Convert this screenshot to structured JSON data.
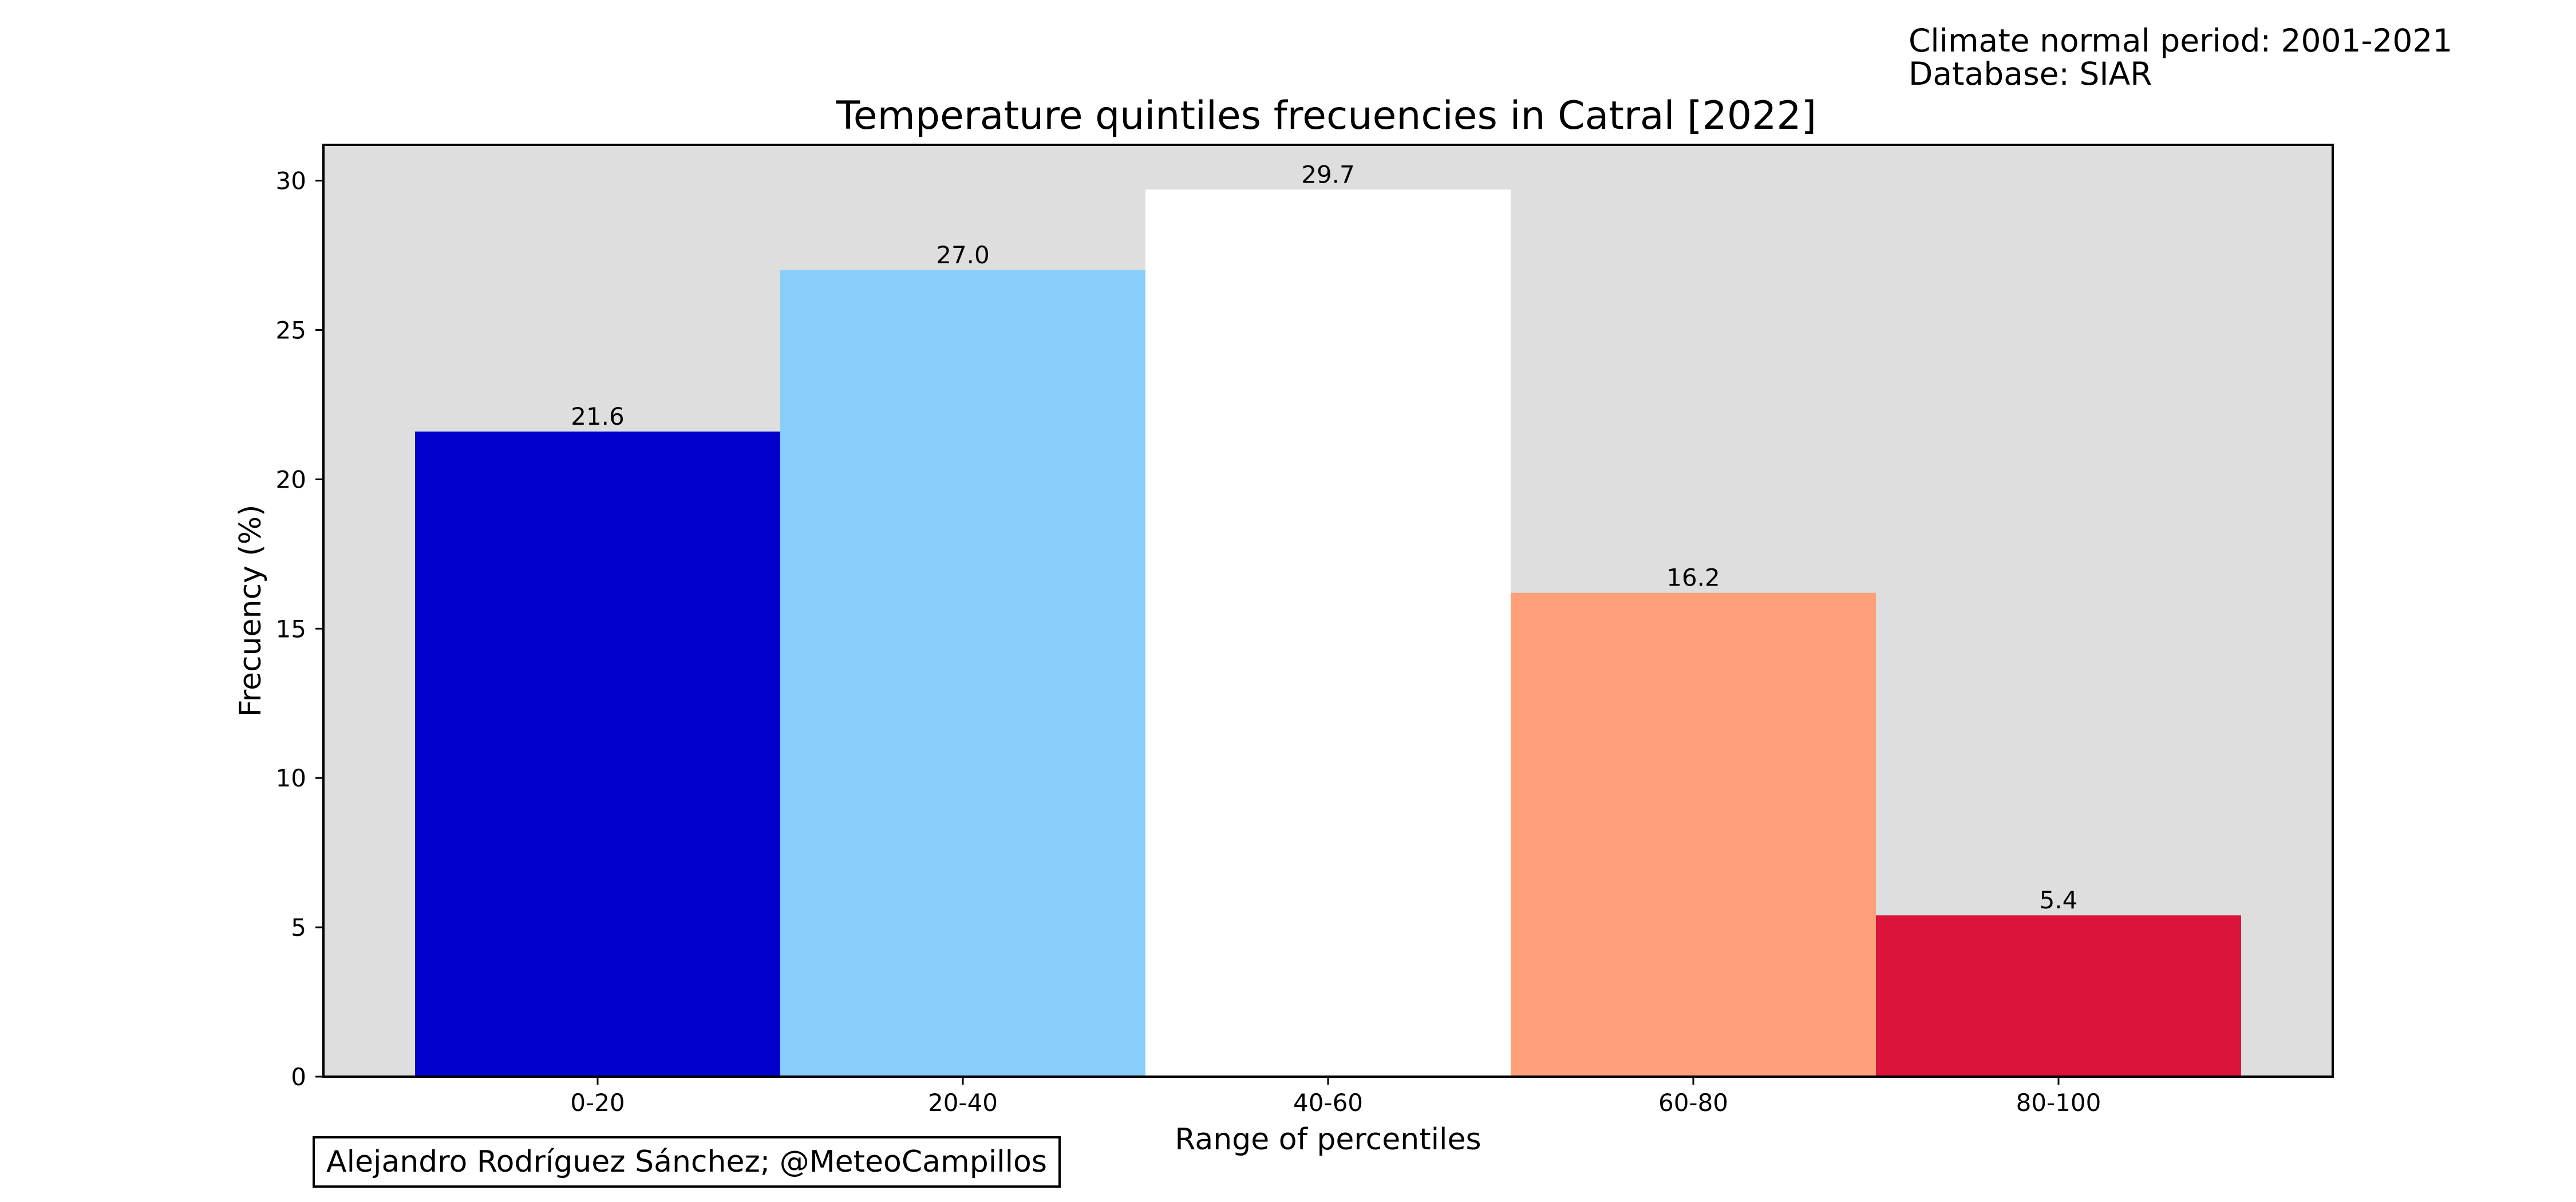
{
  "meta": {
    "normal_period": "Climate normal period: 2001-2021",
    "database": "Database: SIAR"
  },
  "credit": "Alejandro Rodríguez Sánchez; @MeteoCampillos",
  "chart_data": {
    "type": "bar",
    "title": "Temperature quintiles frecuencies in Catral [2022]",
    "xlabel": "Range of percentiles",
    "ylabel": "Frecuency (%)",
    "categories": [
      "0-20",
      "20-40",
      "40-60",
      "60-80",
      "80-100"
    ],
    "values": [
      21.6,
      27.0,
      29.7,
      16.2,
      5.4
    ],
    "value_labels": [
      "21.6",
      "27.0",
      "29.7",
      "16.2",
      "5.4"
    ],
    "colors": [
      "#0000CD",
      "#87CEFA",
      "#FFFFFF",
      "#FFA07A",
      "#DC143C"
    ],
    "plot_background": "#DEDEDE",
    "ylim": [
      0,
      31.2
    ],
    "yticks": [
      0,
      5,
      10,
      15,
      20,
      25,
      30
    ],
    "grid": false,
    "legend": "none"
  }
}
